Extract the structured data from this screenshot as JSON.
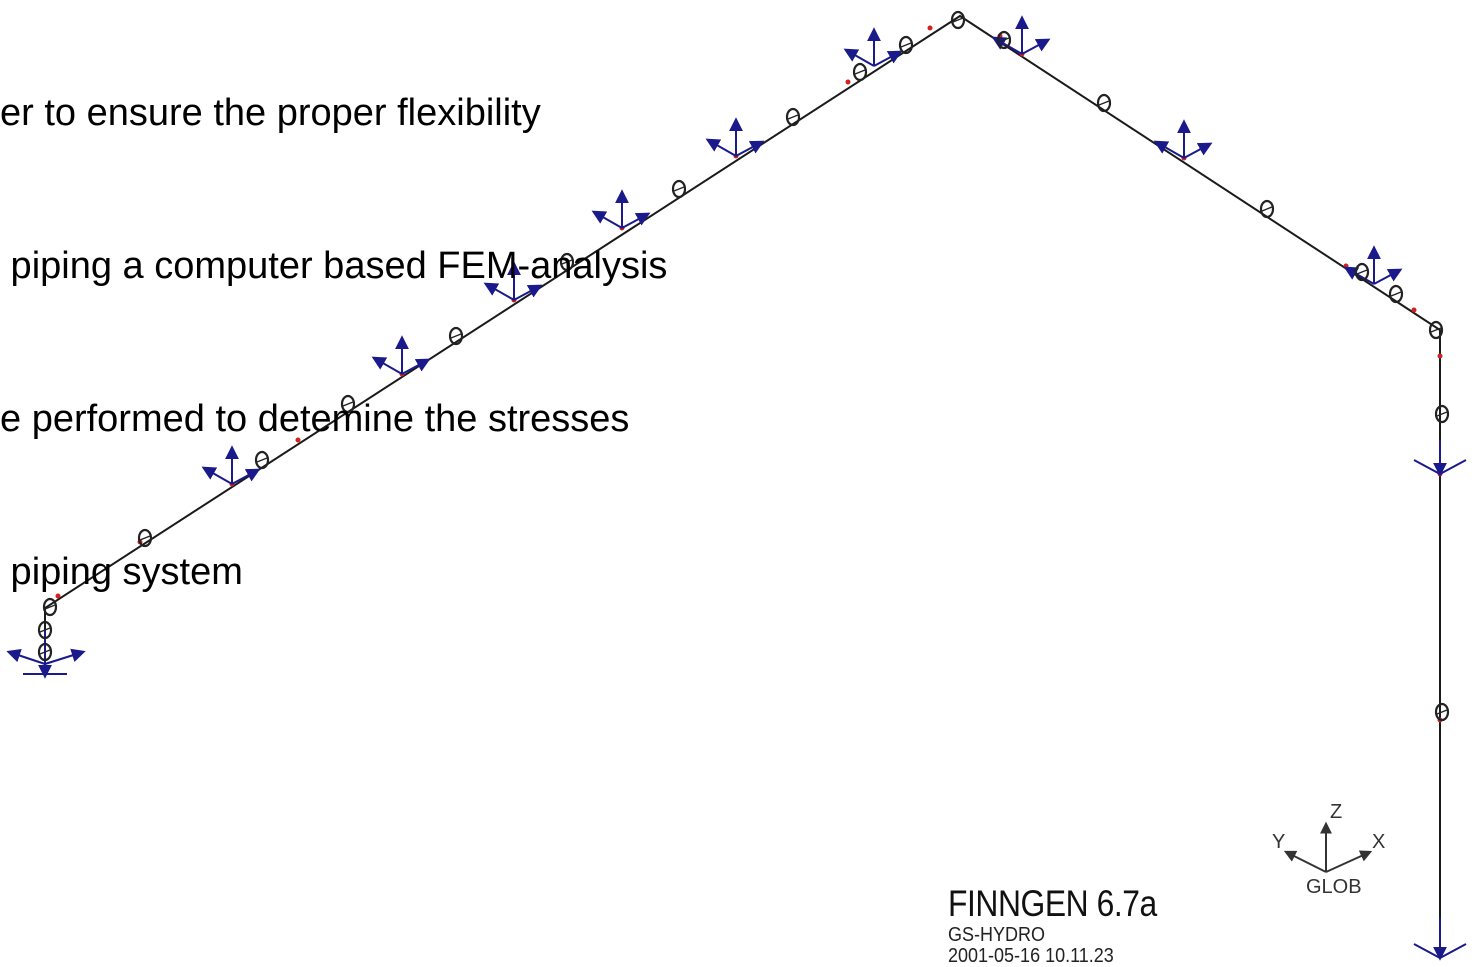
{
  "slide_text": {
    "lines": [
      "er to ensure the proper flexibility",
      " piping a computer based FEM-analysis",
      "e performed to detemine the stresses",
      " piping system"
    ]
  },
  "software": {
    "name": "FINNGEN 6.7a",
    "company": "GS-HYDRO",
    "datetime": "2001-05-16  10.11.23"
  },
  "axes_triad": {
    "label_x": "X",
    "label_y": "Y",
    "label_z": "Z",
    "label_glob": "GLOB"
  },
  "colors": {
    "pipe": "#1a1a1a",
    "support": "#1a1a8c",
    "node_mark": "#d42020",
    "text": "#000000"
  }
}
